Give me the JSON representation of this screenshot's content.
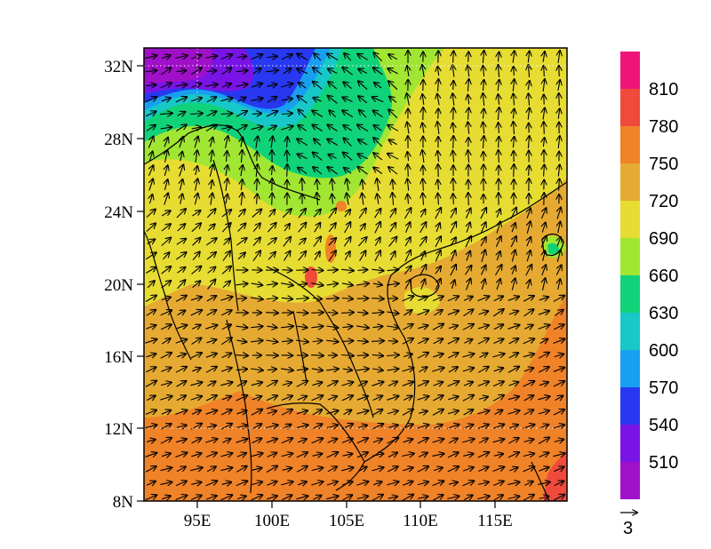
{
  "map": {
    "lat_labels": [
      "32N",
      "28N",
      "24N",
      "20N",
      "16N",
      "12N",
      "8N"
    ],
    "lon_labels": [
      "95E",
      "100E",
      "105E",
      "110E",
      "115E"
    ]
  },
  "colorbar": {
    "labels": [
      "510",
      "540",
      "570",
      "600",
      "630",
      "660",
      "690",
      "720",
      "750",
      "780",
      "810"
    ],
    "colors": [
      "#a010c8",
      "#7a14e6",
      "#2838f0",
      "#18a0f0",
      "#18c8c8",
      "#10d278",
      "#a0e632",
      "#e6dc32",
      "#e6aa32",
      "#f08228",
      "#f04a3c",
      "#f01478"
    ]
  },
  "vector_reference": {
    "label": "3"
  }
}
